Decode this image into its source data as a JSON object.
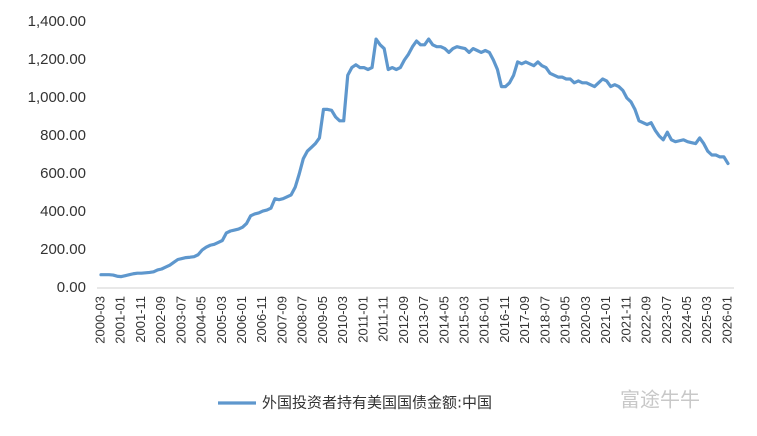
{
  "chart_data": {
    "type": "line",
    "categories": [
      "2000-03",
      null,
      null,
      null,
      null,
      "2001-01",
      null,
      null,
      null,
      null,
      "2001-11",
      null,
      null,
      null,
      null,
      "2002-09",
      null,
      null,
      null,
      null,
      "2003-07",
      null,
      null,
      null,
      null,
      "2004-05",
      null,
      null,
      null,
      null,
      "2005-03",
      null,
      null,
      null,
      null,
      "2006-01",
      null,
      null,
      null,
      null,
      "2006-11",
      null,
      null,
      null,
      null,
      "2007-09",
      null,
      null,
      null,
      null,
      "2008-07",
      null,
      null,
      null,
      null,
      "2009-05",
      null,
      null,
      null,
      null,
      "2010-03",
      null,
      null,
      null,
      null,
      "2011-01",
      null,
      null,
      null,
      null,
      "2011-11",
      null,
      null,
      null,
      null,
      "2012-09",
      null,
      null,
      null,
      null,
      "2013-07",
      null,
      null,
      null,
      null,
      "2014-05",
      null,
      null,
      null,
      null,
      "2015-03",
      null,
      null,
      null,
      null,
      "2016-01",
      null,
      null,
      null,
      null,
      "2016-11",
      null,
      null,
      null,
      null,
      "2017-09",
      null,
      null,
      null,
      null,
      "2018-07",
      null,
      null,
      null,
      null,
      "2019-05",
      null,
      null,
      null,
      null,
      "2020-03",
      null,
      null,
      null,
      null,
      "2021-01",
      null,
      null,
      null,
      null,
      "2021-11",
      null,
      null,
      null,
      null,
      "2022-09",
      null,
      null,
      null,
      null,
      "2023-07",
      null,
      null,
      null,
      null,
      "2024-05",
      null,
      null,
      null,
      null,
      "2025-03",
      null,
      null,
      null,
      null,
      "2026-01"
    ],
    "series": [
      {
        "name": "外国投资者持有美国国债金额:中国",
        "color": "#5e97cd",
        "values": [
          70,
          70,
          70,
          68,
          62,
          60,
          65,
          70,
          75,
          78,
          78,
          80,
          82,
          85,
          95,
          100,
          110,
          120,
          135,
          150,
          155,
          160,
          162,
          165,
          175,
          200,
          215,
          225,
          230,
          240,
          250,
          290,
          300,
          305,
          310,
          320,
          340,
          380,
          390,
          395,
          405,
          410,
          420,
          470,
          465,
          470,
          480,
          490,
          530,
          600,
          680,
          720,
          740,
          760,
          790,
          940,
          940,
          935,
          900,
          880,
          880,
          1120,
          1160,
          1175,
          1160,
          1160,
          1150,
          1160,
          1310,
          1280,
          1260,
          1150,
          1160,
          1150,
          1160,
          1200,
          1230,
          1270,
          1300,
          1280,
          1280,
          1310,
          1280,
          1270,
          1270,
          1260,
          1240,
          1260,
          1270,
          1265,
          1260,
          1240,
          1260,
          1250,
          1240,
          1250,
          1240,
          1200,
          1150,
          1060,
          1060,
          1080,
          1120,
          1190,
          1180,
          1190,
          1180,
          1170,
          1190,
          1170,
          1160,
          1130,
          1120,
          1110,
          1110,
          1100,
          1100,
          1080,
          1090,
          1080,
          1080,
          1070,
          1060,
          1080,
          1100,
          1090,
          1060,
          1070,
          1060,
          1040,
          1000,
          980,
          940,
          880,
          870,
          860,
          870,
          830,
          800,
          780,
          820,
          780,
          770,
          775,
          780,
          770,
          765,
          760,
          790,
          760,
          720,
          700,
          700,
          690,
          690,
          655
        ]
      }
    ],
    "ylim": [
      0,
      1400
    ],
    "yticks": [
      {
        "value": 0,
        "label": "0.00"
      },
      {
        "value": 200,
        "label": "200.00"
      },
      {
        "value": 400,
        "label": "400.00"
      },
      {
        "value": 600,
        "label": "600.00"
      },
      {
        "value": 800,
        "label": "800.00"
      },
      {
        "value": 1000,
        "label": "1,000.00"
      },
      {
        "value": 1200,
        "label": "1,200.00"
      },
      {
        "value": 1400,
        "label": "1,400.00"
      }
    ],
    "grid": false,
    "legend": "bottom",
    "watermark": "富途牛牛"
  }
}
